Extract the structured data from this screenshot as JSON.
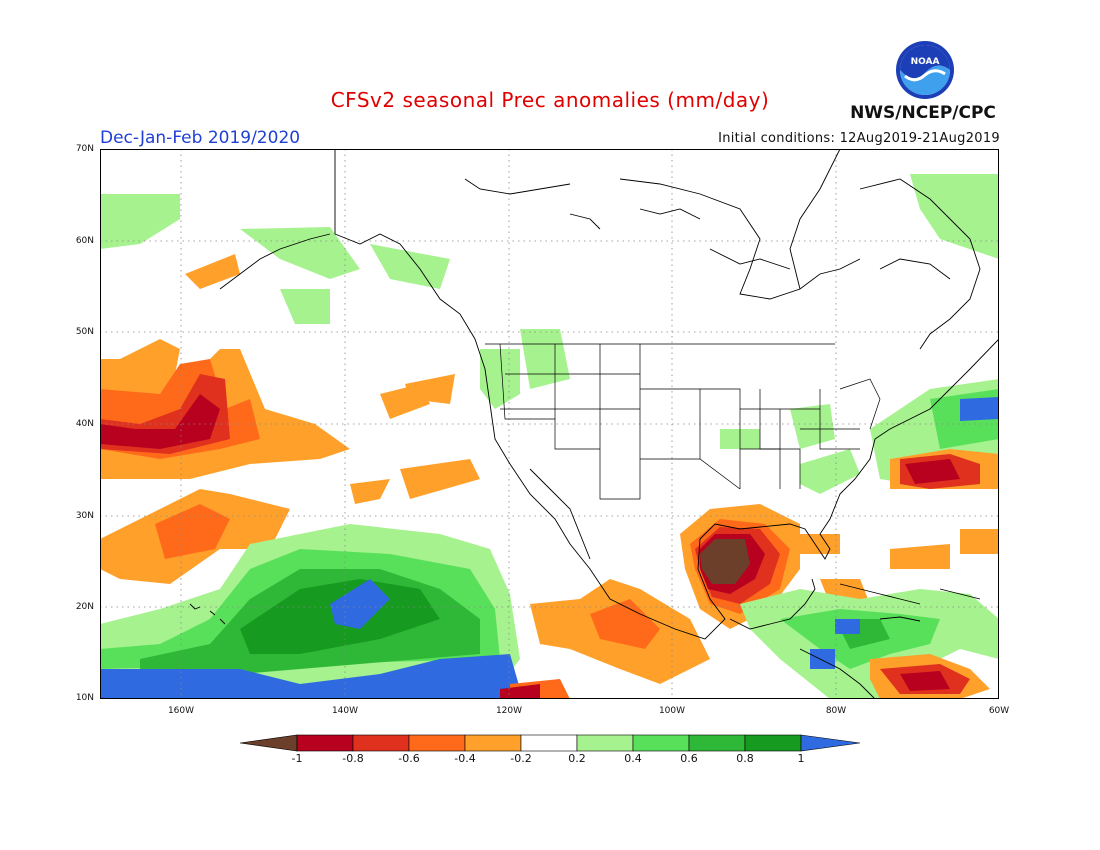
{
  "header": {
    "title": "CFSv2 seasonal Prec anomalies (mm/day)",
    "season": "Dec-Jan-Feb 2019/2020",
    "initial_conditions": "Initial conditions: 12Aug2019-21Aug2019",
    "agency": "NWS/NCEP/CPC",
    "logo_text": "NOAA",
    "logo_icon": "noaa-logo-icon"
  },
  "map": {
    "lat_labels": [
      "70N",
      "60N",
      "50N",
      "40N",
      "30N",
      "20N",
      "10N"
    ],
    "lon_labels": [
      "160W",
      "140W",
      "120W",
      "100W",
      "80W",
      "60W"
    ],
    "lat_range": [
      10,
      70
    ],
    "lon_range": [
      -170,
      -60
    ],
    "grid": "dotted"
  },
  "legend": {
    "labels": [
      "-1",
      "-0.8",
      "-0.6",
      "-0.4",
      "-0.2",
      "0.2",
      "0.4",
      "0.6",
      "0.8",
      "1"
    ],
    "colors": [
      "#6b3f2a",
      "#b8001f",
      "#e0301e",
      "#ff6a1a",
      "#ffa02a",
      "#ffffff",
      "#a6f28f",
      "#59e05a",
      "#2fb838",
      "#169a1f",
      "#2f6ae0"
    ],
    "below_color": "#6b3f2a",
    "above_color": "#2f6ae0"
  }
}
